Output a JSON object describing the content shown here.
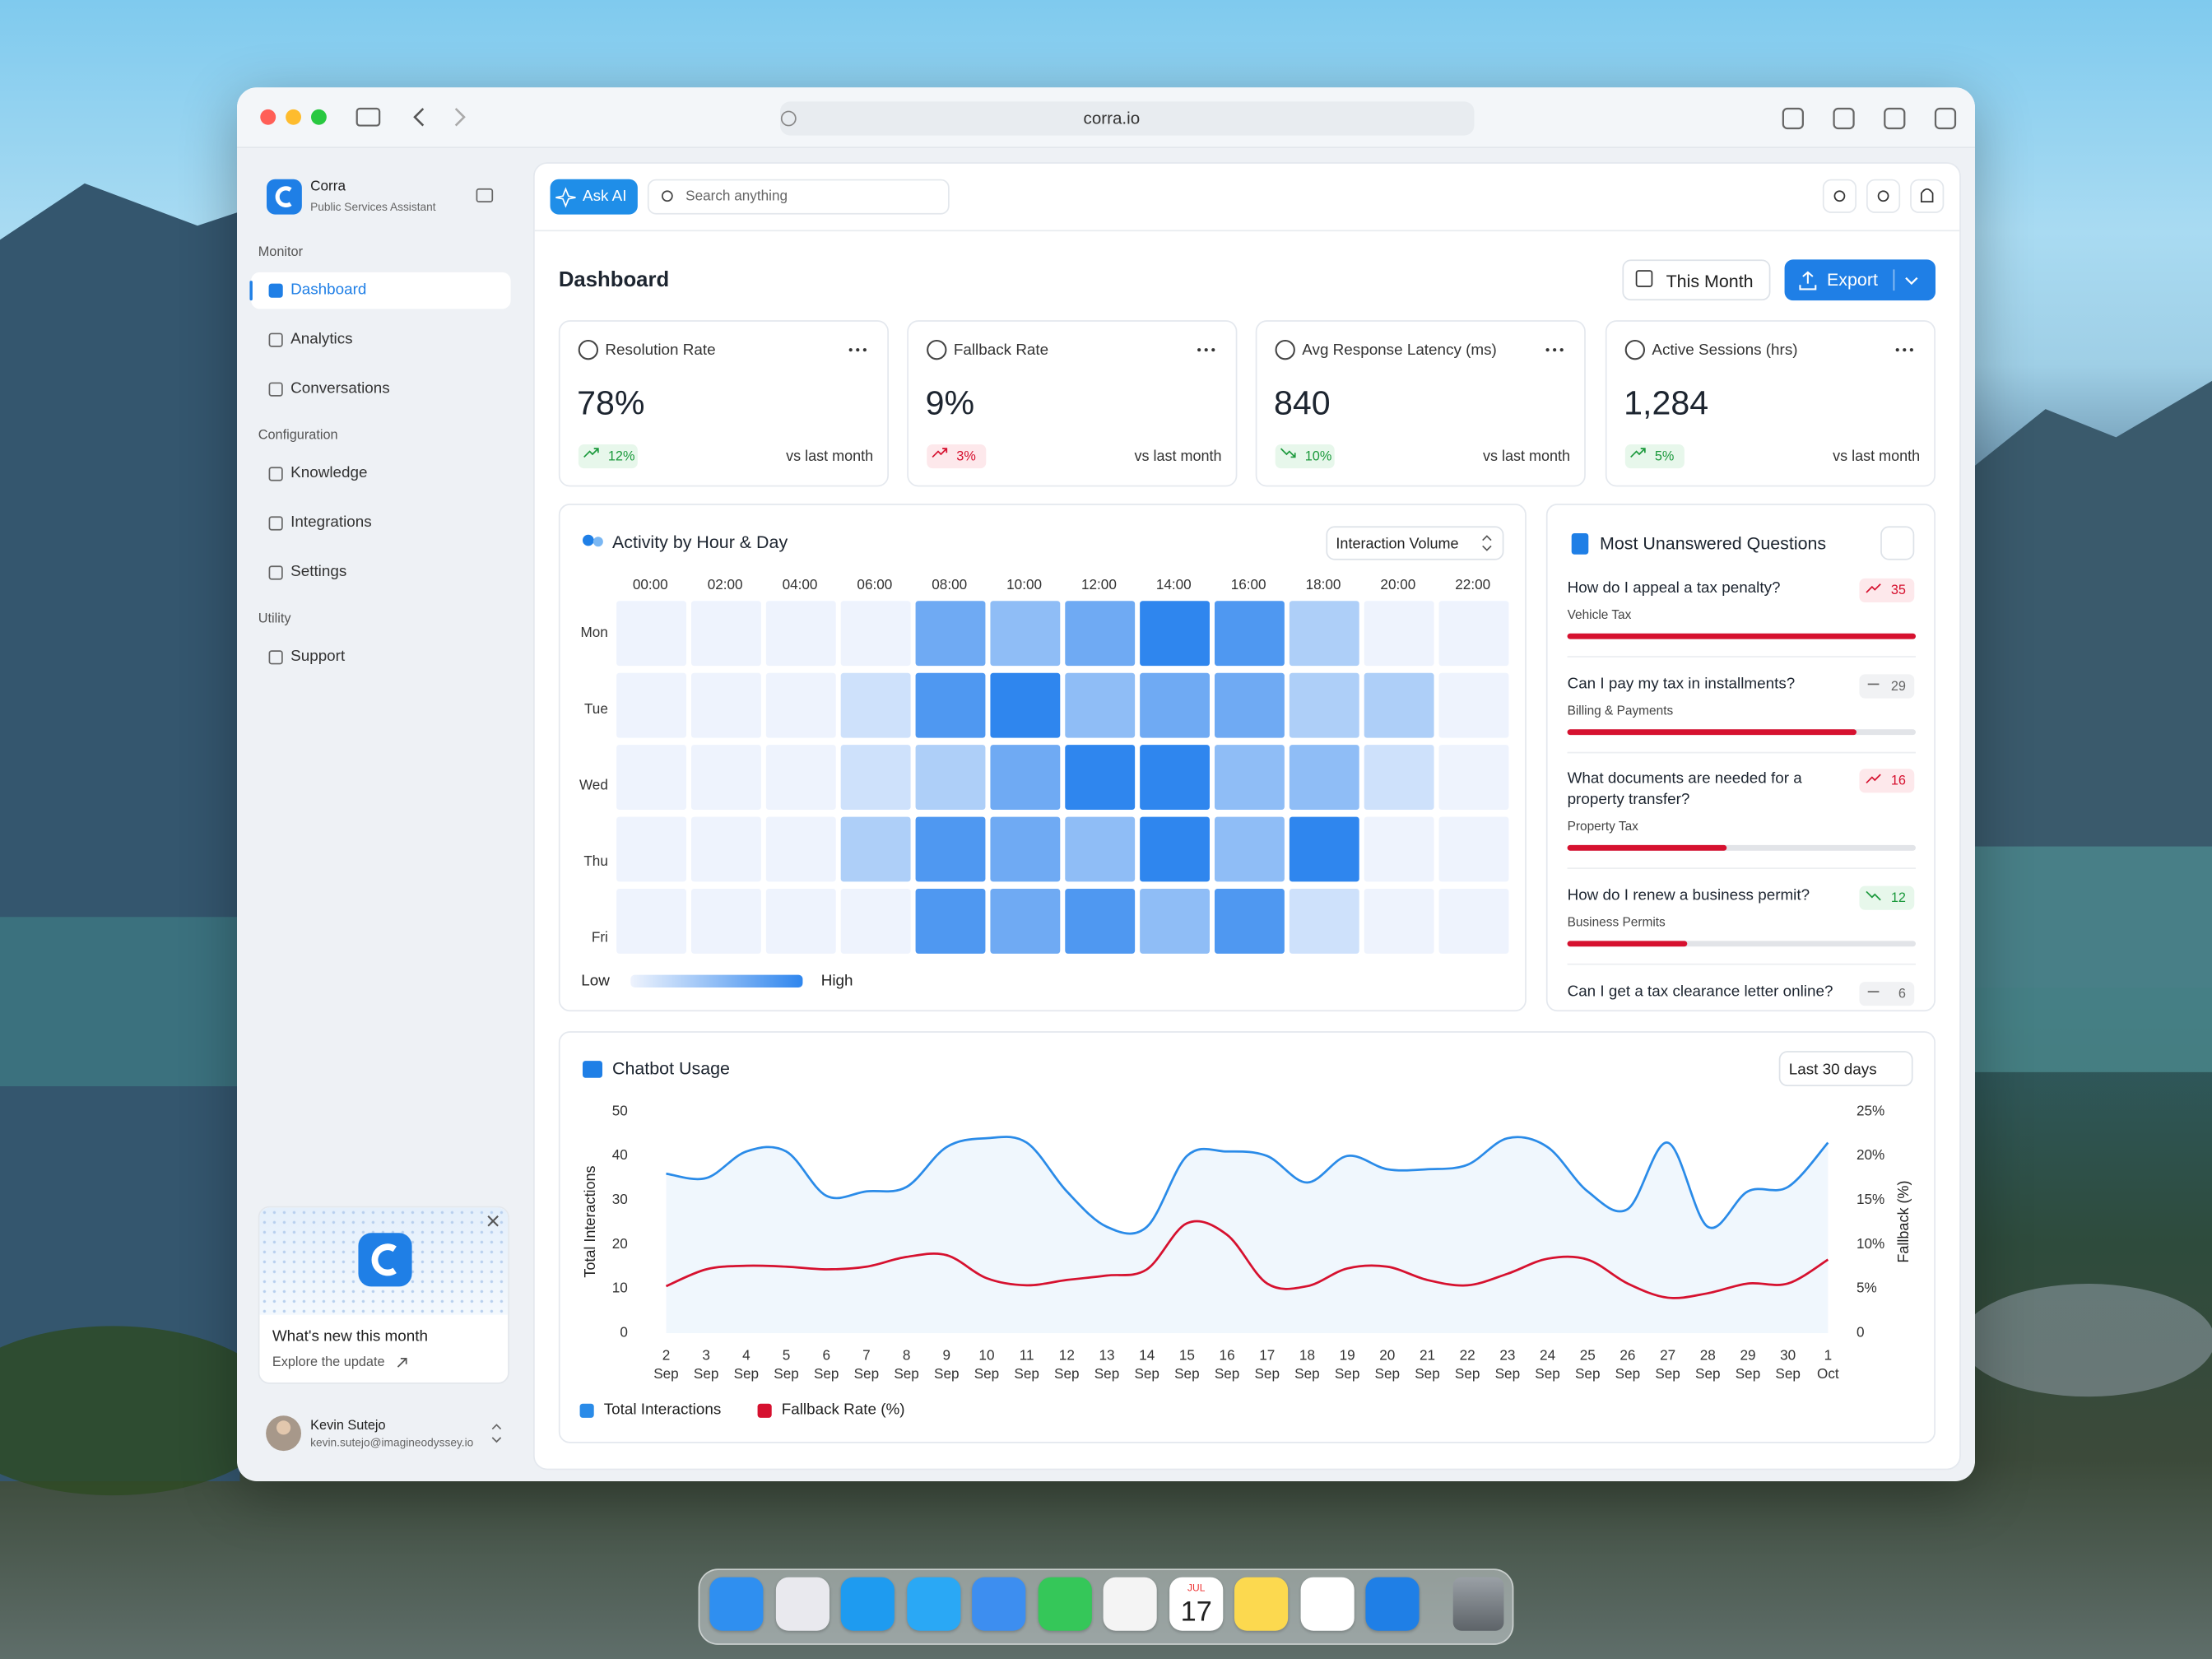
{
  "browser": {
    "url": "corra.io"
  },
  "sidebar": {
    "app_name": "Corra",
    "app_subtitle": "Public Services Assistant",
    "active_item": 0,
    "sections": [
      {
        "title": "Monitor",
        "items": [
          "Dashboard",
          "Analytics",
          "Conversations"
        ]
      },
      {
        "title": "Configuration",
        "items": [
          "Knowledge",
          "Integrations",
          "Settings"
        ]
      },
      {
        "title": "Utility",
        "items": [
          "Support"
        ]
      }
    ],
    "promo": {
      "title": "What's new this month",
      "link": "Explore the update"
    },
    "user": {
      "name": "Kevin Sutejo",
      "email": "kevin.sutejo@imagineodyssey.io"
    }
  },
  "topbar": {
    "ask_ai": "Ask AI",
    "search_placeholder": "Search anything"
  },
  "header": {
    "title": "Dashboard",
    "period": "This Month",
    "export": "Export"
  },
  "kpis": [
    {
      "title": "Resolution Rate",
      "value": "78%",
      "change": "12%",
      "trend": "up",
      "sentiment": "good",
      "note": "vs last month"
    },
    {
      "title": "Fallback Rate",
      "value": "9%",
      "change": "3%",
      "trend": "up",
      "sentiment": "bad",
      "note": "vs last month"
    },
    {
      "title": "Avg Response Latency (ms)",
      "value": "840",
      "change": "10%",
      "trend": "down",
      "sentiment": "good",
      "note": "vs last month"
    },
    {
      "title": "Active Sessions (hrs)",
      "value": "1,284",
      "change": "5%",
      "trend": "up",
      "sentiment": "good",
      "note": "vs last month"
    }
  ],
  "questions": {
    "title": "Most Unanswered Questions",
    "items": [
      {
        "question": "How do I appeal a tax penalty?",
        "category": "Vehicle Tax",
        "count": 35,
        "trend": "up"
      },
      {
        "question": "Can I pay my tax in installments?",
        "category": "Billing & Payments",
        "count": 29,
        "trend": "flat"
      },
      {
        "question": "What documents are needed for a property transfer?",
        "category": "Property Tax",
        "count": 16,
        "trend": "up"
      },
      {
        "question": "How do I renew a business permit?",
        "category": "Business Permits",
        "count": 12,
        "trend": "down"
      },
      {
        "question": "Can I get a tax clearance letter online?",
        "count": 6,
        "trend": "flat"
      }
    ]
  },
  "chart_data": [
    {
      "type": "heatmap",
      "title": "Activity by Hour & Day",
      "metric": "Interaction Volume",
      "columns": [
        "00:00",
        "02:00",
        "04:00",
        "06:00",
        "08:00",
        "10:00",
        "12:00",
        "14:00",
        "16:00",
        "18:00",
        "20:00",
        "22:00"
      ],
      "categories": [
        "Mon",
        "Tue",
        "Wed",
        "Thu",
        "Fri"
      ],
      "values": [
        [
          0,
          0,
          0,
          0,
          4,
          3,
          4,
          6,
          5,
          2,
          0,
          0
        ],
        [
          0,
          0,
          0,
          1,
          5,
          6,
          3,
          4,
          4,
          2,
          2,
          0
        ],
        [
          0,
          0,
          0,
          1,
          2,
          4,
          6,
          6,
          3,
          3,
          1,
          0
        ],
        [
          0,
          0,
          0,
          2,
          5,
          4,
          3,
          6,
          3,
          6,
          0,
          0
        ],
        [
          0,
          0,
          0,
          0,
          5,
          4,
          5,
          3,
          5,
          1,
          0,
          0
        ]
      ],
      "legend_low": "Low",
      "legend_high": "High",
      "color_low": "#eef3fd",
      "color_high": "#2f86ee"
    },
    {
      "type": "line",
      "title": "Chatbot Usage",
      "period": "Last 30 days",
      "categories": [
        "2 Sep",
        "3 Sep",
        "4 Sep",
        "5 Sep",
        "6 Sep",
        "7 Sep",
        "8 Sep",
        "9 Sep",
        "10 Sep",
        "11 Sep",
        "12 Sep",
        "13 Sep",
        "14 Sep",
        "15 Sep",
        "16 Sep",
        "17 Sep",
        "18 Sep",
        "19 Sep",
        "20 Sep",
        "21 Sep",
        "22 Sep",
        "23 Sep",
        "24 Sep",
        "25 Sep",
        "26 Sep",
        "27 Sep",
        "28 Sep",
        "29 Sep",
        "30 Sep",
        "1 Oct"
      ],
      "ylabel": "Total Interactions",
      "y2label": "Fallback (%)",
      "ylim": [
        0,
        50
      ],
      "yticks": [
        0,
        10,
        20,
        30,
        40,
        50
      ],
      "y2lim": [
        0,
        25
      ],
      "y2ticks": [
        0,
        {
          "value": 5,
          "label": "5%"
        },
        {
          "value": 10,
          "label": "10%"
        },
        {
          "value": 15,
          "label": "15%"
        },
        {
          "value": 20,
          "label": "20%"
        },
        {
          "value": 25,
          "label": "25%"
        }
      ],
      "legend": "bottom-left",
      "grid": false,
      "series": [
        {
          "name": "Total Interactions",
          "color": "#2a8be8",
          "area": true,
          "values": [
            36,
            35,
            41,
            41,
            31,
            32,
            33,
            42,
            44,
            43,
            32,
            24,
            24,
            40,
            41,
            40,
            34,
            40,
            37,
            37,
            38,
            44,
            42,
            32,
            28,
            43,
            24,
            32,
            33,
            43
          ]
        },
        {
          "name": "Fallback Rate (%)",
          "color": "#d6112f",
          "axis": "y2",
          "values": [
            5.3,
            7.2,
            7.6,
            7.5,
            7.2,
            7.5,
            8.6,
            8.8,
            6.2,
            5.4,
            6.0,
            6.5,
            7.2,
            12.4,
            11.1,
            5.6,
            5.3,
            7.3,
            7.5,
            6.0,
            5.4,
            6.7,
            8.4,
            8.3,
            5.6,
            4.0,
            4.5,
            5.6,
            5.6,
            8.3
          ]
        }
      ]
    }
  ],
  "dock": {
    "calendar_month": "JUL",
    "calendar_day": "17"
  }
}
